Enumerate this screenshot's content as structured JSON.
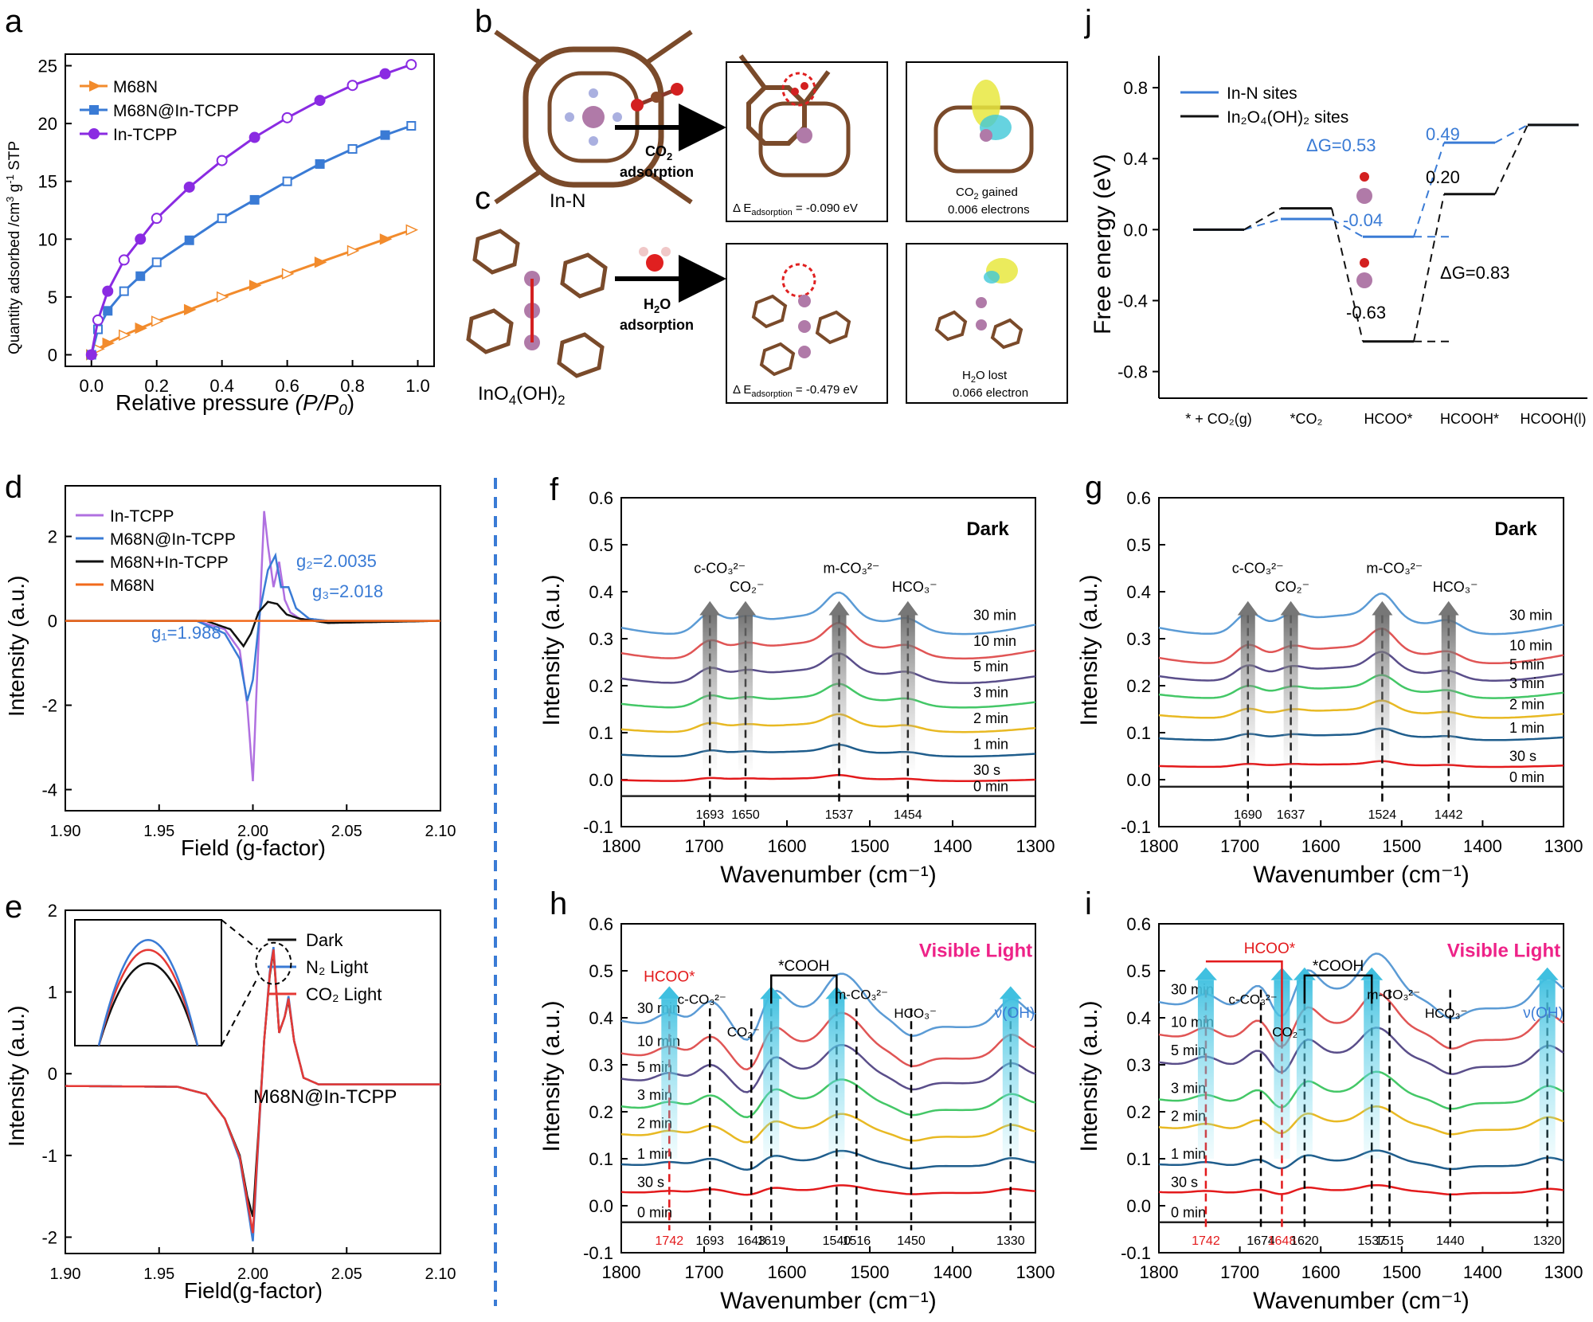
{
  "chart_data": [
    {
      "panel": "a",
      "type": "line",
      "xlabel": "Relative pressure ",
      "xlabel_italic": "(P/P",
      "xlabel_sub": "0",
      "xlabel_end": ")",
      "ylabel": "Quantity adsorbed /cm",
      "ylabel_sup": "3",
      "ylabel_mid": " g",
      "ylabel_sup2": "-1",
      "ylabel_end": " STP",
      "xlim": [
        -0.08,
        1.05
      ],
      "ylim": [
        -1,
        26
      ],
      "xticks": [
        "0.0",
        "0.2",
        "0.4",
        "0.6",
        "0.8",
        "1.0"
      ],
      "xtick_values": [
        0,
        0.2,
        0.4,
        0.6,
        0.8,
        1.0
      ],
      "yticks": [
        "0",
        "5",
        "10",
        "15",
        "20",
        "25"
      ],
      "ytick_values": [
        0,
        5,
        10,
        15,
        20,
        25
      ],
      "series": [
        {
          "name": "M68N",
          "color": "#f28b2c",
          "marker": "triangle",
          "x": [
            0,
            0.02,
            0.05,
            0.1,
            0.15,
            0.2,
            0.3,
            0.4,
            0.5,
            0.6,
            0.7,
            0.8,
            0.9,
            0.98
          ],
          "y": [
            0,
            0.5,
            1.0,
            1.7,
            2.3,
            2.9,
            3.9,
            5.0,
            6.0,
            7.0,
            8.0,
            9.0,
            10.0,
            10.8
          ]
        },
        {
          "name": "M68N@In-TCPP",
          "color": "#3a7bd5",
          "marker": "square",
          "x": [
            0,
            0.02,
            0.05,
            0.1,
            0.15,
            0.2,
            0.3,
            0.4,
            0.5,
            0.6,
            0.7,
            0.8,
            0.9,
            0.98
          ],
          "y": [
            0,
            2.2,
            3.8,
            5.5,
            6.8,
            8.0,
            9.9,
            11.8,
            13.4,
            15.0,
            16.5,
            17.8,
            19.0,
            19.8
          ]
        },
        {
          "name": "In-TCPP",
          "color": "#8a2be2",
          "marker": "circle",
          "x": [
            0,
            0.02,
            0.05,
            0.1,
            0.15,
            0.2,
            0.3,
            0.4,
            0.5,
            0.6,
            0.7,
            0.8,
            0.9,
            0.98
          ],
          "y": [
            0,
            3.0,
            5.5,
            8.2,
            10.0,
            11.8,
            14.5,
            16.8,
            18.8,
            20.5,
            22.0,
            23.3,
            24.3,
            25.1
          ]
        }
      ]
    },
    {
      "panel": "d",
      "type": "line",
      "xlabel": "Field (g-factor)",
      "ylabel": "Intensity (a.u.)",
      "xlim": [
        1.9,
        2.1
      ],
      "ylim": [
        -4.5,
        3.2
      ],
      "xticks": [
        "1.90",
        "1.95",
        "2.00",
        "2.05",
        "2.10"
      ],
      "xtick_values": [
        1.9,
        1.95,
        2.0,
        2.05,
        2.1
      ],
      "yticks": [
        "-4",
        "-2",
        "0",
        "2"
      ],
      "ytick_values": [
        -4,
        -2,
        0,
        2
      ],
      "series": [
        {
          "name": "In-TCPP",
          "color": "#b070e0",
          "x": [
            1.9,
            1.97,
            1.985,
            1.993,
            1.997,
            2.0,
            2.003,
            2.006,
            2.008,
            2.011,
            2.014,
            2.017,
            2.02,
            2.025,
            2.035,
            2.1
          ],
          "y": [
            0,
            0,
            -0.2,
            -0.7,
            -2.0,
            -3.8,
            -0.5,
            2.6,
            1.8,
            0.8,
            1.4,
            0.5,
            0.2,
            0.05,
            0,
            0
          ]
        },
        {
          "name": "M68N@In-TCPP",
          "color": "#3a7bd5",
          "x": [
            1.9,
            1.97,
            1.985,
            1.993,
            1.997,
            2.0,
            2.004,
            2.008,
            2.012,
            2.015,
            2.019,
            2.023,
            2.03,
            2.04,
            2.1
          ],
          "y": [
            0,
            0,
            -0.3,
            -0.9,
            -1.9,
            -1.4,
            0.3,
            1.2,
            1.55,
            0.8,
            0.8,
            0.3,
            0.05,
            0,
            0
          ]
        },
        {
          "name": "M68N+In-TCPP",
          "color": "#111111",
          "x": [
            1.9,
            1.975,
            1.988,
            1.995,
            1.999,
            2.003,
            2.008,
            2.013,
            2.018,
            2.025,
            2.04,
            2.1
          ],
          "y": [
            0,
            0,
            -0.2,
            -0.6,
            -0.3,
            0.2,
            0.45,
            0.4,
            0.15,
            0.05,
            -0.05,
            0
          ]
        },
        {
          "name": "M68N",
          "color": "#f26a1b",
          "x": [
            1.9,
            2.1
          ],
          "y": [
            0,
            0
          ]
        }
      ],
      "annotations": [
        "g₂=2.0035",
        "g₃=2.018",
        "g₁=1.988"
      ]
    },
    {
      "panel": "e",
      "type": "line",
      "xlabel": "Field(g-factor)",
      "ylabel": "Intensity (a.u.)",
      "xlim": [
        1.9,
        2.1
      ],
      "ylim": [
        -2.2,
        2.0
      ],
      "xticks": [
        "1.90",
        "1.95",
        "2.00",
        "2.05",
        "2.10"
      ],
      "xtick_values": [
        1.9,
        1.95,
        2.0,
        2.05,
        2.1
      ],
      "yticks": [
        "-2",
        "-1",
        "0",
        "1",
        "2"
      ],
      "ytick_values": [
        -2,
        -1,
        0,
        1,
        2
      ],
      "series": [
        {
          "name": "Dark",
          "color": "#111111",
          "x": [
            1.9,
            1.96,
            1.975,
            1.985,
            1.993,
            1.997,
            2.0,
            2.003,
            2.006,
            2.009,
            2.011,
            2.014,
            2.017,
            2.019,
            2.022,
            2.027,
            2.035,
            2.1
          ],
          "y": [
            -0.15,
            -0.16,
            -0.25,
            -0.55,
            -1.0,
            -1.5,
            -1.75,
            -0.7,
            0.4,
            1.2,
            1.5,
            0.5,
            0.7,
            0.9,
            0.4,
            -0.05,
            -0.13,
            -0.13
          ]
        },
        {
          "name": "N₂ Light",
          "color": "#3a7bd5",
          "x": [
            1.9,
            1.96,
            1.975,
            1.985,
            1.993,
            1.997,
            2.0,
            2.003,
            2.006,
            2.009,
            2.011,
            2.014,
            2.017,
            2.019,
            2.022,
            2.027,
            2.035,
            2.1
          ],
          "y": [
            -0.15,
            -0.16,
            -0.25,
            -0.55,
            -1.05,
            -1.6,
            -2.05,
            -0.8,
            0.4,
            1.25,
            1.55,
            0.5,
            0.7,
            0.95,
            0.4,
            -0.05,
            -0.13,
            -0.13
          ]
        },
        {
          "name": "CO₂ Light",
          "color": "#e53935",
          "x": [
            1.9,
            1.96,
            1.975,
            1.985,
            1.993,
            1.997,
            2.0,
            2.003,
            2.006,
            2.009,
            2.011,
            2.014,
            2.017,
            2.019,
            2.022,
            2.027,
            2.035,
            2.1
          ],
          "y": [
            -0.15,
            -0.16,
            -0.25,
            -0.55,
            -1.02,
            -1.55,
            -1.95,
            -0.75,
            0.4,
            1.22,
            1.52,
            0.5,
            0.7,
            0.92,
            0.4,
            -0.05,
            -0.13,
            -0.13
          ]
        }
      ],
      "annotation": "M68N@In-TCPP"
    },
    {
      "panel": "j",
      "type": "line",
      "ylabel": "Free energy (eV)",
      "ylim": [
        -0.95,
        0.98
      ],
      "yticks": [
        "-0.8",
        "-0.4",
        "0.0",
        "0.4",
        "0.8"
      ],
      "ytick_values": [
        -0.8,
        -0.4,
        0,
        0.4,
        0.8
      ],
      "categories": [
        "* + CO₂(g)",
        "*CO₂",
        "HCOO*",
        "HCOOH*",
        "HCOOH(l)"
      ],
      "series": [
        {
          "name": "In-N sites",
          "color": "#3a7bd5",
          "values": [
            0.0,
            0.06,
            -0.04,
            0.49,
            0.59
          ]
        },
        {
          "name": "In₂O₄(OH)₂ sites",
          "color": "#111111",
          "values": [
            0.0,
            0.12,
            -0.63,
            0.2,
            0.59
          ]
        }
      ],
      "annotations": [
        "ΔG=0.53",
        "0.49",
        "0.20",
        "-0.04",
        "-0.63",
        "ΔG=0.83"
      ]
    },
    {
      "panel": "f",
      "type": "line",
      "condition": "Dark",
      "xlabel": "Wavenumber (cm⁻¹)",
      "ylabel": "Intensity (a.u.)",
      "xlim": [
        1800,
        1300
      ],
      "ylim": [
        -0.1,
        0.6
      ],
      "xticks": [
        "1800",
        "1700",
        "1600",
        "1500",
        "1400",
        "1300"
      ],
      "xtick_values": [
        1800,
        1700,
        1600,
        1500,
        1400,
        1300
      ],
      "yticks": [
        "-0.1",
        "0.0",
        "0.1",
        "0.2",
        "0.3",
        "0.4",
        "0.5",
        "0.6"
      ],
      "ytick_values": [
        -0.1,
        0,
        0.1,
        0.2,
        0.3,
        0.4,
        0.5,
        0.6
      ],
      "times": [
        "30 min",
        "10 min",
        "5 min",
        "3 min",
        "2 min",
        "1 min",
        "30 s",
        "0 min"
      ],
      "offsets": [
        0.33,
        0.275,
        0.22,
        0.165,
        0.11,
        0.055,
        0.0,
        -0.035
      ],
      "peaks": [
        1693,
        1650,
        1537,
        1454
      ],
      "peak_labels": [
        "c-CO₃²⁻",
        "CO₂⁻",
        "m-CO₃²⁻",
        "HCO₃⁻"
      ]
    },
    {
      "panel": "g",
      "type": "line",
      "condition": "Dark",
      "xlabel": "Wavenumber (cm⁻¹)",
      "ylabel": "Intensity (a.u.)",
      "xlim": [
        1800,
        1300
      ],
      "ylim": [
        -0.1,
        0.6
      ],
      "xticks": [
        "1800",
        "1700",
        "1600",
        "1500",
        "1400",
        "1300"
      ],
      "xtick_values": [
        1800,
        1700,
        1600,
        1500,
        1400,
        1300
      ],
      "yticks": [
        "-0.1",
        "0.0",
        "0.1",
        "0.2",
        "0.3",
        "0.4",
        "0.5",
        "0.6"
      ],
      "ytick_values": [
        -0.1,
        0,
        0.1,
        0.2,
        0.3,
        0.4,
        0.5,
        0.6
      ],
      "times": [
        "30 min",
        "10 min",
        "5 min",
        "3 min",
        "2 min",
        "1 min",
        "30 s",
        "0 min"
      ],
      "offsets": [
        0.33,
        0.265,
        0.225,
        0.185,
        0.14,
        0.09,
        0.03,
        -0.015
      ],
      "peaks": [
        1690,
        1637,
        1524,
        1442
      ],
      "peak_labels": [
        "c-CO₃²⁻",
        "CO₂⁻",
        "m-CO₃²⁻",
        "HCO₃⁻"
      ]
    },
    {
      "panel": "h",
      "type": "line",
      "condition": "Visible Light",
      "xlabel": "Wavenumber (cm⁻¹)",
      "ylabel": "Intensity (a.u.)",
      "xlim": [
        1800,
        1300
      ],
      "ylim": [
        -0.1,
        0.6
      ],
      "xticks": [
        "1800",
        "1700",
        "1600",
        "1500",
        "1400",
        "1300"
      ],
      "xtick_values": [
        1800,
        1700,
        1600,
        1500,
        1400,
        1300
      ],
      "yticks": [
        "-0.1",
        "0.0",
        "0.1",
        "0.2",
        "0.3",
        "0.4",
        "0.5",
        "0.6"
      ],
      "ytick_values": [
        -0.1,
        0,
        0.1,
        0.2,
        0.3,
        0.4,
        0.5,
        0.6
      ],
      "times": [
        "30 min",
        "10 min",
        "5 min",
        "3 min",
        "2 min",
        "1 min",
        "30 s",
        "0 min"
      ],
      "offsets": [
        0.4,
        0.33,
        0.275,
        0.215,
        0.155,
        0.09,
        0.03,
        -0.035
      ],
      "peaks": [
        1742,
        1693,
        1643,
        1619,
        1540,
        1516,
        1450,
        1330
      ],
      "peak_labels": [
        "HCOO*",
        "c-CO₃²⁻",
        "CO₂⁻",
        "*COOH",
        "m-CO₃²⁻",
        "HCO₃⁻",
        "ν(OH)"
      ]
    },
    {
      "panel": "i",
      "type": "line",
      "condition": "Visible Light",
      "xlabel": "Wavenumber (cm⁻¹)",
      "ylabel": "Intensity (a.u.)",
      "xlim": [
        1800,
        1300
      ],
      "ylim": [
        -0.1,
        0.6
      ],
      "xticks": [
        "1800",
        "1700",
        "1600",
        "1500",
        "1400",
        "1300"
      ],
      "xtick_values": [
        1800,
        1700,
        1600,
        1500,
        1400,
        1300
      ],
      "yticks": [
        "-0.1",
        "0.0",
        "0.1",
        "0.2",
        "0.3",
        "0.4",
        "0.5",
        "0.6"
      ],
      "ytick_values": [
        -0.1,
        0,
        0.1,
        0.2,
        0.3,
        0.4,
        0.5,
        0.6
      ],
      "times": [
        "30 min",
        "10 min",
        "5 min",
        "3 min",
        "2 min",
        "1 min",
        "30 s",
        "0 min"
      ],
      "offsets": [
        0.44,
        0.37,
        0.31,
        0.23,
        0.17,
        0.09,
        0.03,
        -0.035
      ],
      "peaks": [
        1742,
        1674,
        1648,
        1620,
        1537,
        1515,
        1440,
        1320
      ],
      "peak_labels": [
        "HCOO*",
        "c-CO₃²⁻",
        "CO₂⁻",
        "*COOH",
        "m-CO₃²⁻",
        "HCO₃⁻",
        "ν(OH)"
      ]
    }
  ],
  "panels_bc": {
    "b_label": "b",
    "c_label": "c",
    "in_n_label": "In-N",
    "ino4_label": "InO",
    "ino4_sub": "4",
    "ino4_end": "(OH)",
    "ino4_sub2": "2",
    "co2_arrow_1": "CO",
    "co2_arrow_sub": "2",
    "co2_arrow_2": "adsorption",
    "h2o_arrow_1": "H",
    "h2o_arrow_sub": "2",
    "h2o_arrow_mid": "O",
    "h2o_arrow_2": "adsorption",
    "dE1_a": "Δ E",
    "dE1_sub": "adsorption",
    "dE1_b": " = -0.090 eV",
    "dE2_a": "Δ E",
    "dE2_sub": "adsorption",
    "dE2_b": " = -0.479 eV",
    "co2_gain_1": "CO",
    "co2_gain_sub": "2",
    "co2_gain_2": " gained",
    "co2_gain_3": "0.006 electrons",
    "h2o_lost_1": "H",
    "h2o_lost_sub": "2",
    "h2o_lost_2": "O lost",
    "h2o_lost_3": "0.066 electron"
  },
  "labels": {
    "a": "a",
    "d": "d",
    "e": "e",
    "f": "f",
    "g": "g",
    "h": "h",
    "i": "i",
    "j": "j"
  },
  "colors": {
    "times": [
      "#5b9bd5",
      "#e05555",
      "#5a4e8a",
      "#44c767",
      "#e8b923",
      "#1f5d8c",
      "#e31a1c",
      "#222222"
    ],
    "cyan_arrow": "#60d0e8",
    "grey_arrow": "#777777",
    "pink": "#ee2288",
    "red": "#e31a1c",
    "blue": "#3a7bd5"
  }
}
